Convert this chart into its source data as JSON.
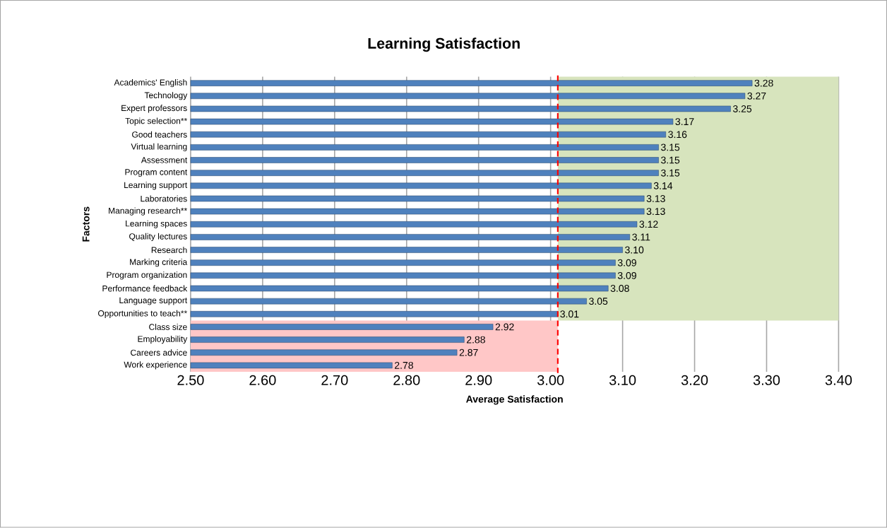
{
  "chart_data": {
    "type": "bar",
    "orientation": "horizontal",
    "title": "Learning Satisfaction",
    "xlabel": "Average Satisfaction",
    "ylabel": "Factors",
    "categories": [
      "Academics' English",
      "Technology",
      "Expert professors",
      "Topic selection**",
      "Good teachers",
      "Virtual learning",
      "Assessment",
      "Program content",
      "Learning support",
      "Laboratories",
      "Managing research**",
      "Learning spaces",
      "Quality lectures",
      "Research",
      "Marking criteria",
      "Program organization",
      "Performance feedback",
      "Language support",
      "Opportunities to teach**",
      "Class size",
      "Employability",
      "Careers advice",
      "Work experience"
    ],
    "values": [
      3.28,
      3.27,
      3.25,
      3.17,
      3.16,
      3.15,
      3.15,
      3.15,
      3.14,
      3.13,
      3.13,
      3.12,
      3.11,
      3.1,
      3.09,
      3.09,
      3.08,
      3.05,
      3.01,
      2.92,
      2.88,
      2.87,
      2.78
    ],
    "value_labels": [
      "3.28",
      "3.27",
      "3.25",
      "3.17",
      "3.16",
      "3.15",
      "3.15",
      "3.15",
      "3.14",
      "3.13",
      "3.13",
      "3.12",
      "3.11",
      "3.10",
      "3.09",
      "3.09",
      "3.08",
      "3.05",
      "3.01",
      "2.92",
      "2.88",
      "2.87",
      "2.78"
    ],
    "color": "#4f81bd",
    "xlim": [
      2.5,
      3.4
    ],
    "xticks": [
      {
        "value": 2.5,
        "label": "2.50"
      },
      {
        "value": 2.6,
        "label": "2.60"
      },
      {
        "value": 2.7,
        "label": "2.70"
      },
      {
        "value": 2.8,
        "label": "2.80"
      },
      {
        "value": 2.9,
        "label": "2.90"
      },
      {
        "value": 3.0,
        "label": "3.00"
      },
      {
        "value": 3.1,
        "label": "3.10"
      },
      {
        "value": 3.2,
        "label": "3.20"
      },
      {
        "value": 3.3,
        "label": "3.30"
      },
      {
        "value": 3.4,
        "label": "3.40"
      }
    ],
    "grid": "x",
    "ref_lines": [
      {
        "axis": "x",
        "value": 3.01,
        "color": "#ff0000",
        "line_style": "dashed"
      }
    ],
    "bands": [
      {
        "axis": "x",
        "from": 3.01,
        "to": 3.4,
        "color": "#d7e4bd"
      },
      {
        "axis": "x",
        "from": 2.5,
        "to": 3.01,
        "color": "#ffc7c7"
      }
    ]
  }
}
